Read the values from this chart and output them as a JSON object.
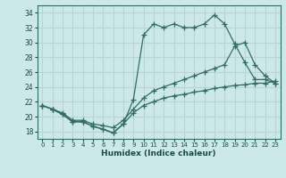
{
  "xlabel": "Humidex (Indice chaleur)",
  "ylabel": "",
  "background_color": "#cde8e8",
  "grid_color": "#b8d4d4",
  "line_color": "#2e6e62",
  "xlim": [
    -0.5,
    23.5
  ],
  "ylim": [
    17.0,
    35.0
  ],
  "xticks": [
    0,
    1,
    2,
    3,
    4,
    5,
    6,
    7,
    8,
    9,
    10,
    11,
    12,
    13,
    14,
    15,
    16,
    17,
    18,
    19,
    20,
    21,
    22,
    23
  ],
  "yticks": [
    18,
    20,
    22,
    24,
    26,
    28,
    30,
    32,
    34
  ],
  "line1_y": [
    21.5,
    21.0,
    20.3,
    19.3,
    19.3,
    18.7,
    18.3,
    17.8,
    19.0,
    22.3,
    31.0,
    32.5,
    32.0,
    32.5,
    32.0,
    32.0,
    32.5,
    33.7,
    32.5,
    29.8,
    27.3,
    25.0,
    25.0,
    24.5
  ],
  "line2_y": [
    21.5,
    21.0,
    20.5,
    19.5,
    19.5,
    19.0,
    18.8,
    18.5,
    19.5,
    21.0,
    22.5,
    23.5,
    24.0,
    24.5,
    25.0,
    25.5,
    26.0,
    26.5,
    27.0,
    29.5,
    30.0,
    27.0,
    25.5,
    24.5
  ],
  "line3_y": [
    21.5,
    21.0,
    20.3,
    19.3,
    19.3,
    18.7,
    18.3,
    17.8,
    19.0,
    20.5,
    21.5,
    22.0,
    22.5,
    22.8,
    23.0,
    23.3,
    23.5,
    23.8,
    24.0,
    24.2,
    24.3,
    24.5,
    24.5,
    24.8
  ]
}
